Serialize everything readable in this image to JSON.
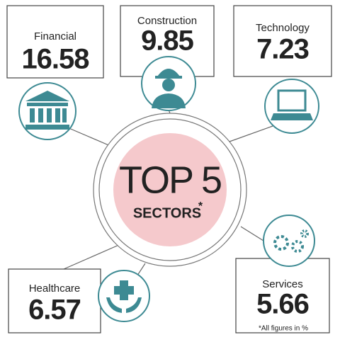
{
  "title": "TOP 5",
  "subtitle": "SECTORS",
  "subtitle_mark": "*",
  "footnote": "*All figures in %",
  "sectors": [
    {
      "label": "Financial",
      "value": 16.58
    },
    {
      "label": "Construction",
      "value": 9.85
    },
    {
      "label": "Technology",
      "value": 7.23
    },
    {
      "label": "Healthcare",
      "value": 6.57
    },
    {
      "label": "Services",
      "value": 5.66
    }
  ]
}
